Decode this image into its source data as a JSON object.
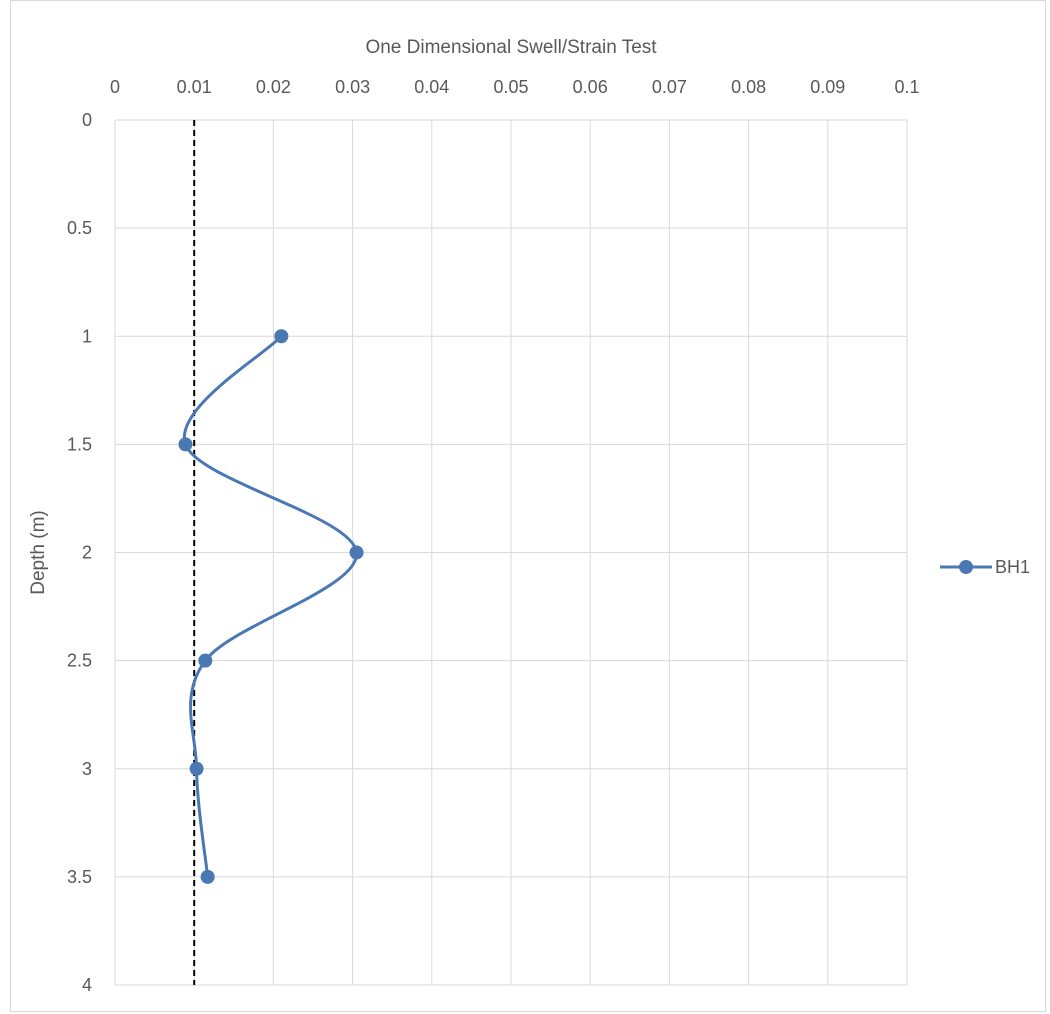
{
  "chart_data": {
    "type": "line",
    "title": "",
    "x_axis_title": "One Dimensional Swell/Strain Test",
    "y_axis_title": "Depth (m)",
    "x_axis_position": "top",
    "y_axis_reversed": true,
    "xlim": [
      0,
      0.1
    ],
    "ylim": [
      0,
      4
    ],
    "x_ticks": [
      "0",
      "0.01",
      "0.02",
      "0.03",
      "0.04",
      "0.05",
      "0.06",
      "0.07",
      "0.08",
      "0.09",
      "0.1"
    ],
    "y_ticks": [
      "0",
      "0.5",
      "1",
      "1.5",
      "2",
      "2.5",
      "3",
      "3.5",
      "4"
    ],
    "grid": true,
    "legend_position": "right",
    "series": [
      {
        "name": "BH1",
        "color": "#4a78b3",
        "smooth": true,
        "points": [
          {
            "x": 0.021,
            "y": 1.0
          },
          {
            "x": 0.0089,
            "y": 1.5
          },
          {
            "x": 0.0305,
            "y": 2.0
          },
          {
            "x": 0.0114,
            "y": 2.5
          },
          {
            "x": 0.0103,
            "y": 3.0
          },
          {
            "x": 0.0117,
            "y": 3.5
          }
        ]
      }
    ],
    "reference_line": {
      "x": 0.01,
      "color": "#000000",
      "style": "dashed"
    }
  }
}
